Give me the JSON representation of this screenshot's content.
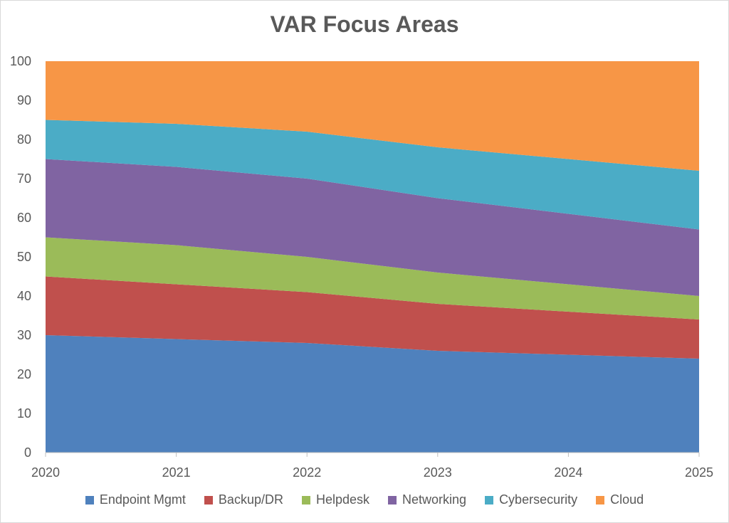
{
  "chart_data": {
    "type": "area",
    "stacked": true,
    "title": "VAR Focus Areas",
    "xlabel": "",
    "ylabel": "",
    "x": [
      "2020",
      "2021",
      "2022",
      "2023",
      "2024",
      "2025"
    ],
    "ylim": [
      0,
      100
    ],
    "yticks": [
      0,
      10,
      20,
      30,
      40,
      50,
      60,
      70,
      80,
      90,
      100
    ],
    "grid": false,
    "legend_position": "bottom",
    "series": [
      {
        "name": "Endpoint Mgmt",
        "color": "#4F81BD",
        "values": [
          30,
          29,
          28,
          26,
          25,
          24
        ]
      },
      {
        "name": "Backup/DR",
        "color": "#C0504D",
        "values": [
          15,
          14,
          13,
          12,
          11,
          10
        ]
      },
      {
        "name": "Helpdesk",
        "color": "#9BBB59",
        "values": [
          10,
          10,
          9,
          8,
          7,
          6
        ]
      },
      {
        "name": "Networking",
        "color": "#8064A2",
        "values": [
          20,
          20,
          20,
          19,
          18,
          17
        ]
      },
      {
        "name": "Cybersecurity",
        "color": "#4BACC6",
        "values": [
          10,
          11,
          12,
          13,
          14,
          15
        ]
      },
      {
        "name": "Cloud",
        "color": "#F79646",
        "values": [
          15,
          16,
          18,
          22,
          25,
          28
        ]
      }
    ]
  }
}
